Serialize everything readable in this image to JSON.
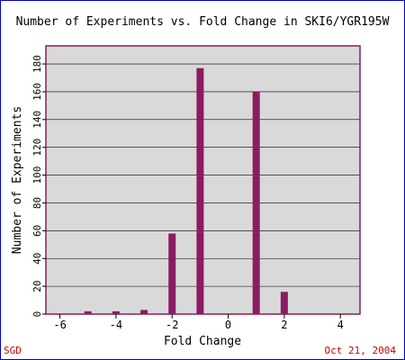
{
  "footer": {
    "source": "SGD",
    "date": "Oct 21, 2004"
  },
  "colors": {
    "bar": "#8b1c62",
    "plot_bg": "#d9d9d9",
    "plot_border": "#8b1c62",
    "footer_text": "#cc0000",
    "frame_border": "#0000cc"
  },
  "chart_data": {
    "type": "bar",
    "title": "Number of Experiments vs. Fold Change in SKI6/YGR195W",
    "xlabel": "Fold Change",
    "ylabel": "Number of Experiments",
    "x": [
      -5,
      -4,
      -3,
      -2,
      -1,
      1,
      2
    ],
    "values": [
      2,
      2,
      3,
      58,
      177,
      160,
      16
    ],
    "xlim": [
      -6.5,
      4.7
    ],
    "ylim": [
      0,
      193
    ],
    "xticks": [
      -6,
      -4,
      -2,
      0,
      2,
      4
    ],
    "yticks": [
      0,
      20,
      40,
      60,
      80,
      100,
      120,
      140,
      160,
      180
    ],
    "grid": true,
    "legend": "none"
  }
}
